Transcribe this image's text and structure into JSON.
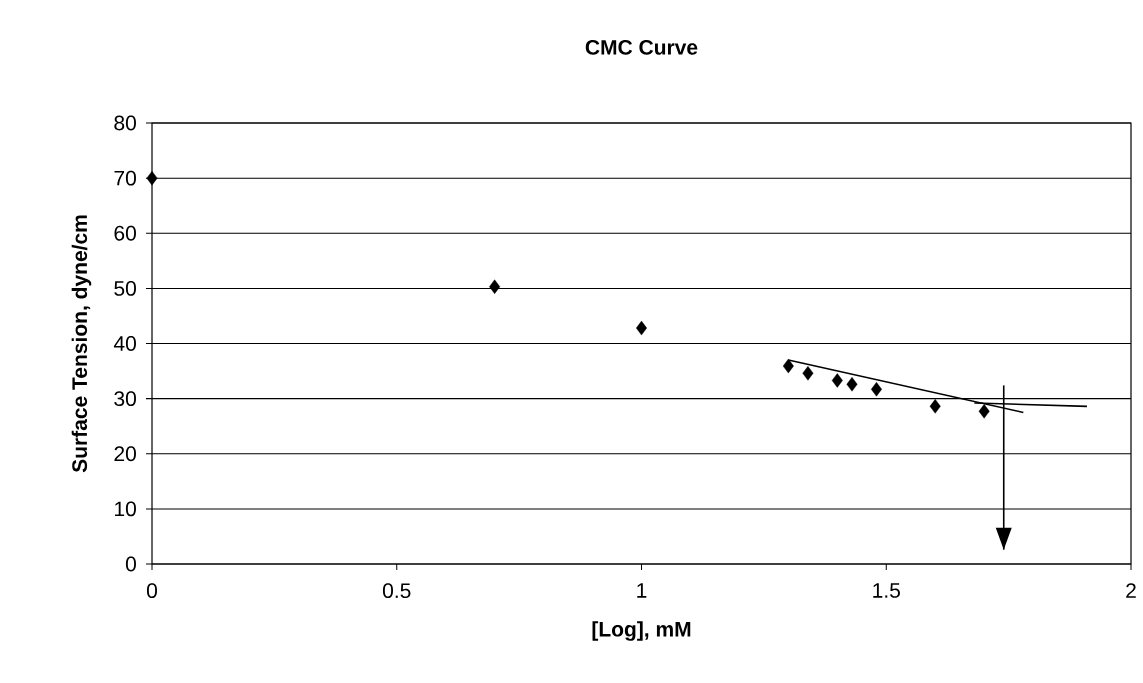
{
  "chart_data": {
    "type": "scatter",
    "title": "CMC  Curve",
    "xlabel": "[Log], mM",
    "ylabel": "Surface Tension, dyne/cm",
    "xlim": [
      0,
      2
    ],
    "ylim": [
      0,
      80
    ],
    "xticks": [
      0,
      0.5,
      1,
      1.5,
      2
    ],
    "yticks": [
      0,
      10,
      20,
      30,
      40,
      50,
      60,
      70,
      80
    ],
    "grid": "y",
    "marker": "diamond",
    "series": [
      {
        "color": "#000000",
        "x": [
          0,
          0.7,
          1.0,
          1.3,
          1.34,
          1.4,
          1.43,
          1.48,
          1.6,
          1.7
        ],
        "values": [
          70,
          50.3,
          42.8,
          35.9,
          34.6,
          33.3,
          32.6,
          31.7,
          28.6,
          27.7
        ]
      },
      {
        "type": "line",
        "marker": "none",
        "color": "#000000",
        "x": [
          1.3,
          1.78
        ],
        "values": [
          37.0,
          27.5
        ]
      },
      {
        "type": "line",
        "marker": "none",
        "color": "#000000",
        "x": [
          1.68,
          1.91
        ],
        "values": [
          29.2,
          28.6
        ]
      },
      {
        "type": "line",
        "marker": "none",
        "color": "#000000",
        "x": [
          1.74,
          1.74
        ],
        "values": [
          32.4,
          2.6
        ]
      }
    ]
  }
}
